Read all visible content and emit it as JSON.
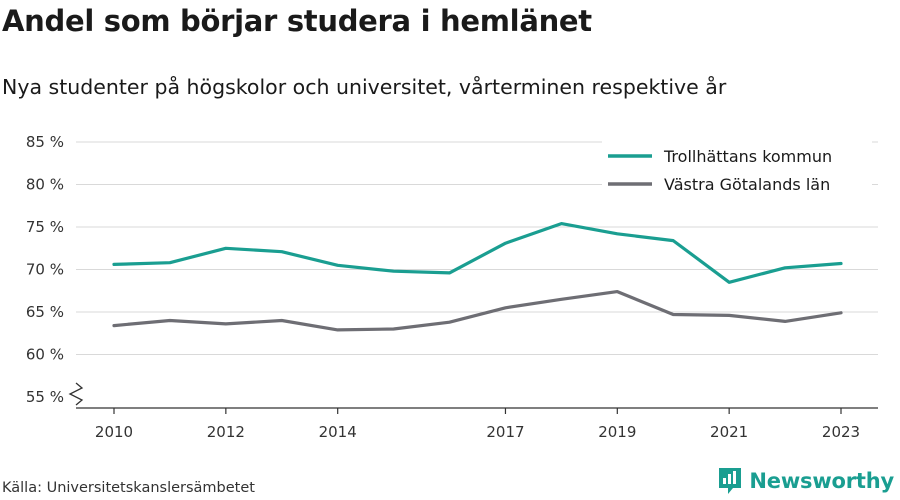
{
  "header": {
    "title": "Andel som börjar studera i hemlänet",
    "subtitle": "Nya studenter på högskolor och universitet, vårterminen respektive år"
  },
  "footer": {
    "source": "Källa: Universitetskanslersämbetet",
    "brand": "Newsworthy"
  },
  "colors": {
    "accent": "#1a9e91",
    "secondary": "#6e6e74",
    "grid": "#d9d9d9"
  },
  "icons": [
    "newsworthy-logo-icon",
    "axis-break-icon"
  ],
  "chart_data": {
    "type": "line",
    "x": [
      2010,
      2011,
      2012,
      2013,
      2014,
      2015,
      2016,
      2017,
      2018,
      2019,
      2020,
      2021,
      2022,
      2023
    ],
    "series": [
      {
        "name": "Trollhättans kommun",
        "color": "#1a9e91",
        "values": [
          70.6,
          70.8,
          72.5,
          72.1,
          70.5,
          69.8,
          69.6,
          73.1,
          75.4,
          74.2,
          73.4,
          68.5,
          70.2,
          70.7
        ]
      },
      {
        "name": "Västra Götalands län",
        "color": "#6e6e74",
        "values": [
          63.4,
          64.0,
          63.6,
          64.0,
          62.9,
          63.0,
          63.8,
          65.5,
          66.5,
          67.4,
          64.7,
          64.6,
          63.9,
          64.9
        ]
      }
    ],
    "x_ticks": [
      "2010",
      "2012",
      "2014",
      "2017",
      "2019",
      "2021",
      "2023"
    ],
    "y_ticks": [
      "55 %",
      "60 %",
      "65 %",
      "70 %",
      "75 %",
      "80 %",
      "85 %"
    ],
    "ylim": [
      55,
      85
    ],
    "xlim": [
      2010,
      2023
    ],
    "grid": true,
    "legend": "top-right",
    "axis_break": true
  }
}
